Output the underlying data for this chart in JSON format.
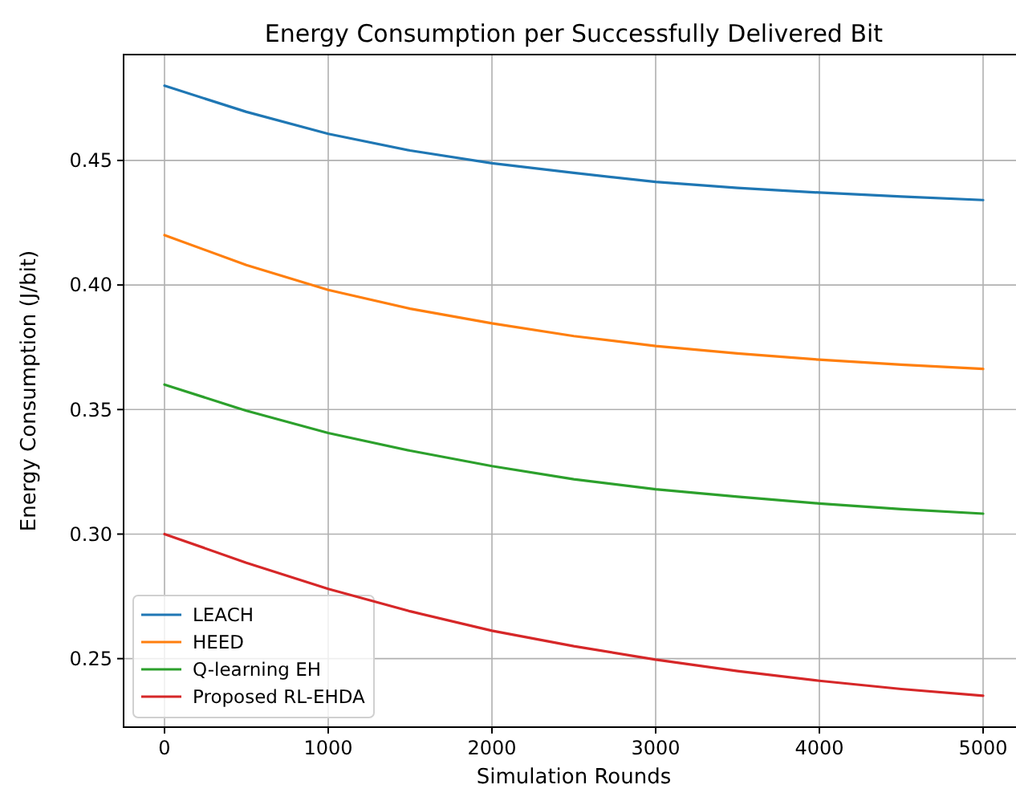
{
  "chart_data": {
    "type": "line",
    "title": "Energy Consumption per Successfully Delivered Bit",
    "xlabel": "Simulation Rounds",
    "ylabel": "Energy Consumption (J/bit)",
    "x": [
      0,
      500,
      1000,
      1500,
      2000,
      2500,
      3000,
      3500,
      4000,
      4500,
      5000
    ],
    "series": [
      {
        "name": "LEACH",
        "color": "#1f77b4",
        "values": [
          0.48,
          0.4695,
          0.4607,
          0.454,
          0.4489,
          0.445,
          0.4414,
          0.439,
          0.4371,
          0.4355,
          0.4341
        ]
      },
      {
        "name": "HEED",
        "color": "#ff7f0e",
        "values": [
          0.42,
          0.408,
          0.398,
          0.3905,
          0.3846,
          0.3795,
          0.3755,
          0.3725,
          0.37,
          0.368,
          0.3663
        ]
      },
      {
        "name": "Q-learning EH",
        "color": "#2ca02c",
        "values": [
          0.36,
          0.3495,
          0.3406,
          0.3335,
          0.3273,
          0.322,
          0.318,
          0.315,
          0.3123,
          0.31,
          0.3082
        ]
      },
      {
        "name": "Proposed RL-EHDA",
        "color": "#d62728",
        "values": [
          0.3,
          0.2885,
          0.278,
          0.269,
          0.2612,
          0.255,
          0.2496,
          0.245,
          0.2411,
          0.2378,
          0.2351
        ]
      }
    ],
    "xlim": [
      -250,
      5250
    ],
    "ylim": [
      0.2225,
      0.4925
    ],
    "xticks": [
      0,
      1000,
      2000,
      3000,
      4000,
      5000
    ],
    "yticks": [
      0.25,
      {
        "value": 0.3,
        "label": "0.30"
      },
      0.35,
      {
        "value": 0.4,
        "label": "0.40"
      },
      0.45
    ],
    "grid": true,
    "legend": "bottom left",
    "marker": "none",
    "line_style": "solid"
  }
}
